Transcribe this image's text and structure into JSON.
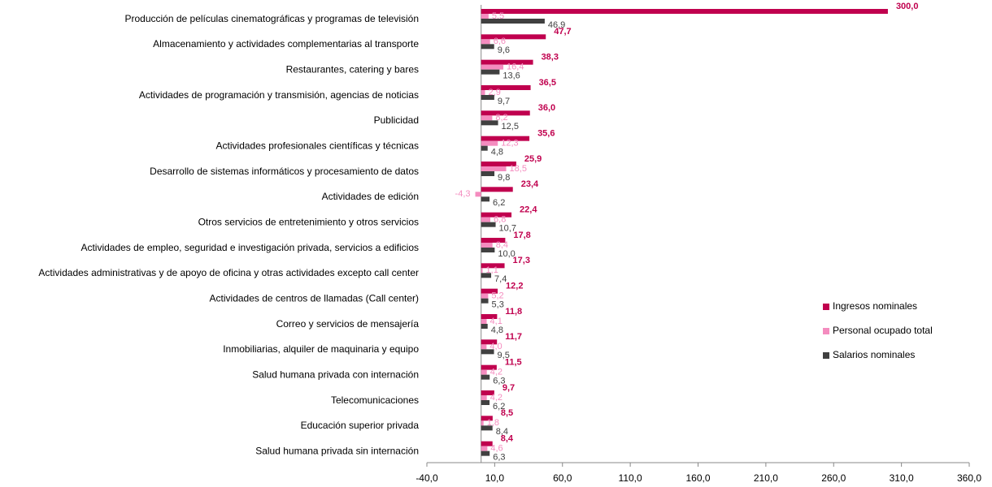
{
  "chart_data": {
    "type": "barh",
    "categories": [
      "Producción de películas cinematográficas y programas de televisión",
      "Almacenamiento y actividades complementarias al transporte",
      "Restaurantes, catering y bares",
      "Actividades de programación y transmisión,  agencias de noticias",
      "Publicidad",
      "Actividades profesionales científicas y técnicas",
      "Desarrollo de sistemas informáticos y procesamiento de datos",
      "Actividades de edición",
      "Otros servicios de entretenimiento y otros servicios",
      "Actividades de empleo, seguridad e investigación privada, servicios a edificios",
      "Actividades administrativas y de apoyo de oficina y otras actividades excepto call center",
      "Actividades de centros de llamadas (Call center)",
      "Correo y servicios de mensajería",
      "Inmobiliarias, alquiler de maquinaria y equipo",
      "Salud humana privada con internación",
      "Telecomunicaciones",
      "Educación superior privada",
      "Salud humana privada sin internación"
    ],
    "series": [
      {
        "name": "Ingresos nominales",
        "color": "#c0004e",
        "values": [
          300.0,
          47.7,
          38.3,
          36.5,
          36.0,
          35.6,
          25.9,
          23.4,
          22.4,
          17.8,
          17.3,
          12.2,
          11.8,
          11.7,
          11.5,
          9.7,
          8.5,
          8.4
        ],
        "value_labels": [
          "300,0",
          "47,7",
          "38,3",
          "36,5",
          "36,0",
          "35,6",
          "25,9",
          "23,4",
          "22,4",
          "17,8",
          "17,3",
          "12,2",
          "11,8",
          "11,7",
          "11,5",
          "9,7",
          "8,5",
          "8,4"
        ]
      },
      {
        "name": "Personal ocupado total",
        "color": "#f48cbf",
        "values": [
          5.5,
          6.6,
          16.4,
          2.9,
          8.2,
          12.3,
          18.5,
          -4.3,
          6.8,
          8.4,
          1.1,
          5.2,
          4.1,
          4.0,
          4.2,
          4.2,
          1.8,
          4.6
        ],
        "value_labels": [
          "5,5",
          "6,6",
          "16,4",
          "2,9",
          "8,2",
          "12,3",
          "18,5",
          "-4,3",
          "6,8",
          "8,4",
          "1,1",
          "5,2",
          "4,1",
          "4,0",
          "4,2",
          "4,2",
          "1,8",
          "4,6"
        ]
      },
      {
        "name": "Salarios nominales",
        "color": "#404040",
        "values": [
          46.9,
          9.6,
          13.6,
          9.7,
          12.5,
          4.8,
          9.8,
          6.2,
          10.7,
          10.0,
          7.4,
          5.3,
          4.8,
          9.5,
          6.3,
          6.2,
          8.4,
          6.3
        ],
        "value_labels": [
          "46,9",
          "9,6",
          "13,6",
          "9,7",
          "12,5",
          "4,8",
          "9,8",
          "6,2",
          "10,7",
          "10,0",
          "7,4",
          "5,3",
          "4,8",
          "9,5",
          "6,3",
          "6,2",
          "8,4",
          "6,3"
        ]
      }
    ],
    "xlim": [
      -40,
      360
    ],
    "xticks": [
      {
        "value": -40,
        "label": "-40,0"
      },
      {
        "value": 10,
        "label": "10,0"
      },
      {
        "value": 60,
        "label": "60,0"
      },
      {
        "value": 110,
        "label": "110,0"
      },
      {
        "value": 160,
        "label": "160,0"
      },
      {
        "value": 210,
        "label": "210,0"
      },
      {
        "value": 260,
        "label": "260,0"
      },
      {
        "value": 310,
        "label": "310,0"
      },
      {
        "value": 360,
        "label": "360,0"
      }
    ],
    "grid": false,
    "legend": "right"
  }
}
